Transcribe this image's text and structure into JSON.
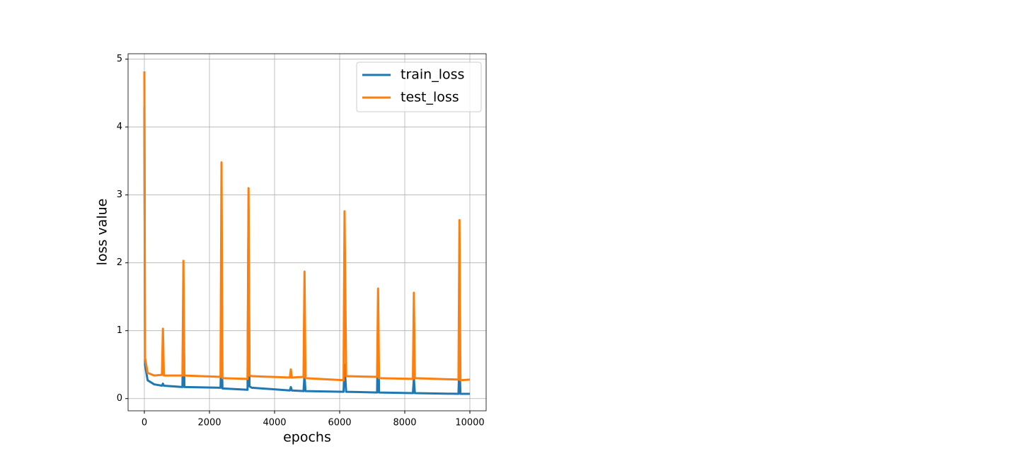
{
  "chart_data": {
    "type": "line",
    "xlabel": "epochs",
    "ylabel": "loss value",
    "x": [
      0,
      20,
      100,
      300,
      540,
      570,
      600,
      1170,
      1200,
      1230,
      2340,
      2370,
      2400,
      3170,
      3200,
      3230,
      3300,
      4470,
      4500,
      4530,
      4890,
      4920,
      4950,
      6120,
      6150,
      6200,
      7150,
      7180,
      7210,
      8250,
      8280,
      8310,
      9650,
      9680,
      9710,
      10000
    ],
    "series": [
      {
        "name": "train_loss",
        "color": "#1f77b4",
        "values": [
          4.3,
          0.5,
          0.27,
          0.21,
          0.19,
          0.22,
          0.19,
          0.17,
          1.4,
          0.17,
          0.16,
          0.8,
          0.15,
          0.13,
          2.8,
          0.18,
          0.16,
          0.12,
          0.17,
          0.12,
          0.11,
          0.35,
          0.11,
          0.1,
          0.5,
          0.1,
          0.09,
          1.2,
          0.09,
          0.08,
          0.3,
          0.08,
          0.07,
          0.6,
          0.07,
          0.07
        ]
      },
      {
        "name": "test_loss",
        "color": "#ff7f0e",
        "values": [
          4.82,
          0.6,
          0.38,
          0.34,
          0.35,
          1.03,
          0.34,
          0.34,
          2.03,
          0.34,
          0.32,
          3.48,
          0.3,
          0.29,
          3.1,
          0.34,
          0.33,
          0.31,
          0.43,
          0.31,
          0.32,
          1.87,
          0.3,
          0.27,
          2.76,
          0.33,
          0.32,
          1.62,
          0.3,
          0.29,
          1.56,
          0.3,
          0.28,
          2.63,
          0.27,
          0.28
        ]
      }
    ],
    "xlim": [
      -500,
      10500
    ],
    "ylim": [
      -0.18,
      5.08
    ],
    "xticks": [
      0,
      2000,
      4000,
      6000,
      8000,
      10000
    ],
    "yticks": [
      0,
      1,
      2,
      3,
      4,
      5
    ],
    "grid": true,
    "legend": "upper right"
  }
}
